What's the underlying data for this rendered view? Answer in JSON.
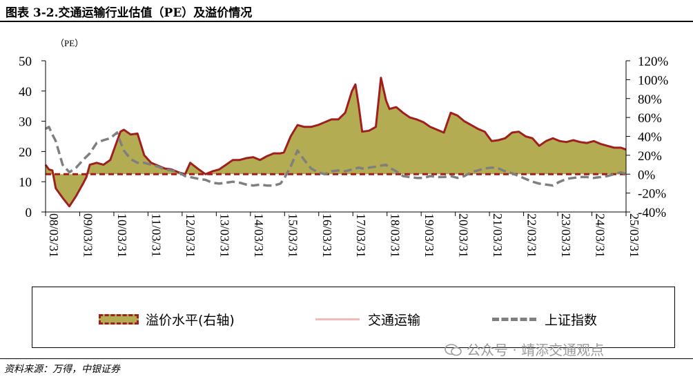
{
  "figure": {
    "title": "图表 3-2.交通运输行业估值（PE）及溢价情况",
    "source": "资料来源：万得，中银证券",
    "watermark": "公众号 · 靖添交通观点"
  },
  "chart_data": {
    "type": "line",
    "unit_label": "（PE）",
    "x_tick_labels": [
      "08/03/31",
      "09/03/31",
      "10/03/31",
      "11/03/31",
      "12/03/31",
      "13/03/31",
      "14/03/31",
      "15/03/31",
      "16/03/31",
      "17/03/31",
      "18/03/31",
      "19/03/31",
      "20/03/31",
      "21/03/31",
      "22/03/31",
      "23/03/31",
      "24/03/31",
      "25/03/31"
    ],
    "x_range": [
      2008.0,
      2025.05
    ],
    "y_left": {
      "range": [
        0,
        50
      ],
      "ticks": [
        0,
        10,
        20,
        30,
        40,
        50
      ]
    },
    "y_right": {
      "range": [
        -40,
        120
      ],
      "ticks": [
        -40,
        -20,
        0,
        20,
        40,
        60,
        80,
        100,
        120
      ],
      "tick_labels": [
        "-40%",
        "-20%",
        "0%",
        "20%",
        "40%",
        "60%",
        "80%",
        "100%",
        "120%"
      ]
    },
    "legend_position": "bottom",
    "grid": false,
    "series": [
      {
        "name": "溢价水平(右轴)",
        "axis": "right",
        "style": "area",
        "fill_color": "#b3ac52",
        "edge_color": "#a01e1e",
        "points": [
          [
            2008.0,
            10
          ],
          [
            2008.1,
            5
          ],
          [
            2008.2,
            4
          ],
          [
            2008.3,
            -15
          ],
          [
            2008.5,
            -25
          ],
          [
            2008.7,
            -34
          ],
          [
            2008.9,
            -23
          ],
          [
            2009.1,
            -10
          ],
          [
            2009.2,
            -3
          ],
          [
            2009.3,
            10
          ],
          [
            2009.5,
            12
          ],
          [
            2009.7,
            10
          ],
          [
            2009.9,
            15
          ],
          [
            2010.1,
            35
          ],
          [
            2010.2,
            45
          ],
          [
            2010.3,
            47
          ],
          [
            2010.5,
            42
          ],
          [
            2010.7,
            43
          ],
          [
            2010.9,
            20
          ],
          [
            2011.1,
            12
          ],
          [
            2011.3,
            9
          ],
          [
            2011.5,
            6
          ],
          [
            2011.7,
            5
          ],
          [
            2011.9,
            2
          ],
          [
            2012.1,
            0
          ],
          [
            2012.25,
            12
          ],
          [
            2012.5,
            5
          ],
          [
            2012.7,
            0
          ],
          [
            2012.9,
            3
          ],
          [
            2013.1,
            5
          ],
          [
            2013.3,
            10
          ],
          [
            2013.5,
            15
          ],
          [
            2013.7,
            15
          ],
          [
            2013.9,
            17
          ],
          [
            2014.1,
            18
          ],
          [
            2014.3,
            15
          ],
          [
            2014.5,
            19
          ],
          [
            2014.7,
            22
          ],
          [
            2014.9,
            22
          ],
          [
            2015.0,
            23
          ],
          [
            2015.2,
            40
          ],
          [
            2015.4,
            52
          ],
          [
            2015.6,
            50
          ],
          [
            2015.8,
            50
          ],
          [
            2016.0,
            52
          ],
          [
            2016.2,
            55
          ],
          [
            2016.4,
            58
          ],
          [
            2016.6,
            58
          ],
          [
            2016.8,
            65
          ],
          [
            2017.0,
            88
          ],
          [
            2017.1,
            95
          ],
          [
            2017.2,
            72
          ],
          [
            2017.3,
            45
          ],
          [
            2017.5,
            46
          ],
          [
            2017.7,
            50
          ],
          [
            2017.85,
            102
          ],
          [
            2018.0,
            78
          ],
          [
            2018.1,
            69
          ],
          [
            2018.3,
            71
          ],
          [
            2018.5,
            65
          ],
          [
            2018.7,
            60
          ],
          [
            2018.9,
            58
          ],
          [
            2019.1,
            55
          ],
          [
            2019.3,
            50
          ],
          [
            2019.5,
            47
          ],
          [
            2019.7,
            44
          ],
          [
            2019.9,
            65
          ],
          [
            2020.1,
            62
          ],
          [
            2020.3,
            56
          ],
          [
            2020.5,
            52
          ],
          [
            2020.7,
            48
          ],
          [
            2020.9,
            45
          ],
          [
            2021.1,
            35
          ],
          [
            2021.3,
            36
          ],
          [
            2021.5,
            38
          ],
          [
            2021.7,
            44
          ],
          [
            2021.9,
            45
          ],
          [
            2022.1,
            40
          ],
          [
            2022.3,
            38
          ],
          [
            2022.5,
            30
          ],
          [
            2022.7,
            35
          ],
          [
            2022.9,
            38
          ],
          [
            2023.1,
            35
          ],
          [
            2023.3,
            34
          ],
          [
            2023.5,
            36
          ],
          [
            2023.7,
            34
          ],
          [
            2023.9,
            33
          ],
          [
            2024.1,
            35
          ],
          [
            2024.3,
            32
          ],
          [
            2024.5,
            30
          ],
          [
            2024.7,
            28
          ],
          [
            2024.9,
            28
          ],
          [
            2025.05,
            26
          ]
        ]
      },
      {
        "name": "交通运输",
        "axis": "left",
        "style": "line",
        "color": "#f4b8b8",
        "points": []
      },
      {
        "name": "上证指数",
        "axis": "right",
        "style": "dashed-line",
        "color": "#7f7f7f",
        "points": [
          [
            2008.0,
            48
          ],
          [
            2008.1,
            50
          ],
          [
            2008.2,
            42
          ],
          [
            2008.3,
            35
          ],
          [
            2008.5,
            10
          ],
          [
            2008.7,
            2
          ],
          [
            2008.9,
            7
          ],
          [
            2009.1,
            15
          ],
          [
            2009.3,
            22
          ],
          [
            2009.5,
            33
          ],
          [
            2009.7,
            36
          ],
          [
            2009.9,
            38
          ],
          [
            2010.1,
            44
          ],
          [
            2010.2,
            34
          ],
          [
            2010.3,
            25
          ],
          [
            2010.5,
            16
          ],
          [
            2010.7,
            12
          ],
          [
            2010.9,
            12
          ],
          [
            2011.1,
            10
          ],
          [
            2011.3,
            8
          ],
          [
            2011.5,
            5
          ],
          [
            2011.7,
            4
          ],
          [
            2011.9,
            2
          ],
          [
            2012.1,
            -2
          ],
          [
            2012.25,
            -3
          ],
          [
            2012.5,
            -5
          ],
          [
            2012.7,
            -6
          ],
          [
            2012.9,
            -9
          ],
          [
            2013.1,
            -10
          ],
          [
            2013.3,
            -9
          ],
          [
            2013.5,
            -8
          ],
          [
            2013.7,
            -9
          ],
          [
            2013.9,
            -11
          ],
          [
            2014.1,
            -12
          ],
          [
            2014.3,
            -11
          ],
          [
            2014.5,
            -12
          ],
          [
            2014.7,
            -12
          ],
          [
            2014.9,
            -10
          ],
          [
            2015.0,
            -5
          ],
          [
            2015.2,
            8
          ],
          [
            2015.4,
            25
          ],
          [
            2015.6,
            15
          ],
          [
            2015.8,
            6
          ],
          [
            2016.0,
            2
          ],
          [
            2016.2,
            0
          ],
          [
            2016.4,
            3
          ],
          [
            2016.6,
            4
          ],
          [
            2016.8,
            3
          ],
          [
            2017.0,
            5
          ],
          [
            2017.1,
            6
          ],
          [
            2017.2,
            7
          ],
          [
            2017.3,
            6
          ],
          [
            2017.5,
            7
          ],
          [
            2017.7,
            8
          ],
          [
            2017.85,
            9
          ],
          [
            2018.0,
            10
          ],
          [
            2018.1,
            7
          ],
          [
            2018.3,
            3
          ],
          [
            2018.5,
            -2
          ],
          [
            2018.7,
            -3
          ],
          [
            2018.9,
            -4
          ],
          [
            2019.1,
            -4
          ],
          [
            2019.3,
            -2
          ],
          [
            2019.5,
            -3
          ],
          [
            2019.7,
            -3
          ],
          [
            2019.9,
            -2
          ],
          [
            2020.1,
            -4
          ],
          [
            2020.3,
            -2
          ],
          [
            2020.5,
            2
          ],
          [
            2020.7,
            4
          ],
          [
            2020.9,
            6
          ],
          [
            2021.1,
            7
          ],
          [
            2021.3,
            6
          ],
          [
            2021.5,
            3
          ],
          [
            2021.7,
            1
          ],
          [
            2021.9,
            -2
          ],
          [
            2022.1,
            -5
          ],
          [
            2022.3,
            -8
          ],
          [
            2022.5,
            -10
          ],
          [
            2022.7,
            -11
          ],
          [
            2022.9,
            -12
          ],
          [
            2023.1,
            -8
          ],
          [
            2023.3,
            -5
          ],
          [
            2023.5,
            -4
          ],
          [
            2023.7,
            -3
          ],
          [
            2023.9,
            -3
          ],
          [
            2024.1,
            -4
          ],
          [
            2024.3,
            -3
          ],
          [
            2024.5,
            -2
          ],
          [
            2024.7,
            0
          ],
          [
            2024.9,
            2
          ],
          [
            2025.05,
            0
          ]
        ]
      }
    ],
    "legend": {
      "items": [
        {
          "label": "溢价水平(右轴)",
          "swatch": "area"
        },
        {
          "label": "交通运输",
          "swatch": "line"
        },
        {
          "label": "上证指数",
          "swatch": "dashed"
        }
      ]
    }
  }
}
